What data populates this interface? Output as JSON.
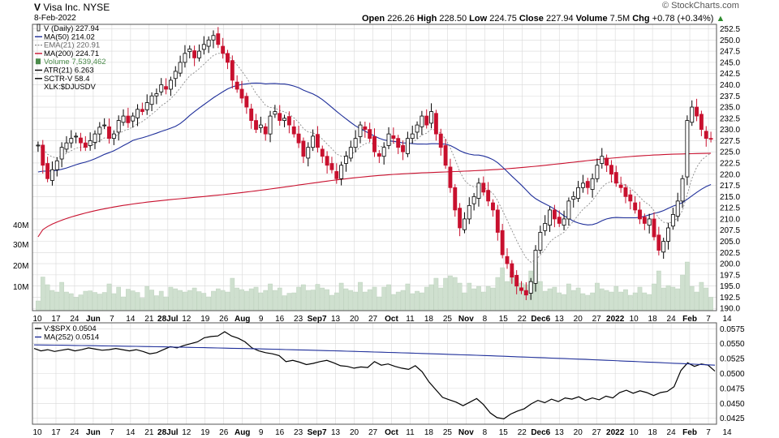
{
  "header": {
    "symbol": "V",
    "company": "Visa Inc.",
    "exchange": "NYSE",
    "date": "8-Feb-2022",
    "open_label": "Open",
    "open": "226.26",
    "high_label": "High",
    "high": "228.50",
    "low_label": "Low",
    "low": "224.75",
    "close_label": "Close",
    "close": "227.94",
    "volume_label": "Volume",
    "volume": "7.5M",
    "chg_label": "Chg",
    "chg": "+0.78 (+0.34%)",
    "brand": "© StockCharts.com"
  },
  "legend": [
    {
      "text": "V (Daily) 227.94",
      "color": "#000000",
      "style": "candle"
    },
    {
      "text": "MA(50) 214.02",
      "color": "#1f2f9a",
      "style": "line"
    },
    {
      "text": "EMA(21) 220.91",
      "color": "#8a8a8a",
      "style": "dash"
    },
    {
      "text": "MA(200) 224.71",
      "color": "#c8102e",
      "style": "line"
    },
    {
      "text": "Volume 7,539,462",
      "color": "#4c8c4c",
      "style": "bar"
    },
    {
      "text": "ATR(21) 6.263",
      "color": "#000000",
      "style": "line"
    },
    {
      "text": "SCTR-V 58.4",
      "color": "#000000",
      "style": "line"
    },
    {
      "text": "XLK:$DJUSDV",
      "color": "#000000",
      "style": "none"
    }
  ],
  "legend2": [
    {
      "text": "V:$SPX 0.0504",
      "color": "#000000"
    },
    {
      "text": "MA(252) 0.0514",
      "color": "#1f2f9a"
    }
  ],
  "colors": {
    "up": "#000000",
    "down": "#c8102e",
    "volume": "#cfe0cf",
    "ma50": "#1f2f9a",
    "ma200": "#c8102e",
    "ema21": "#8a8a8a",
    "grid": "#d8d8d8"
  },
  "chart_data": [
    {
      "type": "candlestick",
      "title": "V Visa Inc. NYSE (Daily)",
      "x_ticks": [
        "10",
        "17",
        "24",
        "Jun",
        "7",
        "14",
        "21",
        "28Jul",
        "12",
        "19",
        "26",
        "Aug",
        "9",
        "16",
        "23",
        "Sep7",
        "13",
        "20",
        "27",
        "Oct",
        "11",
        "18",
        "25",
        "Nov",
        "8",
        "15",
        "22",
        "Dec6",
        "13",
        "20",
        "27",
        "2022",
        "10",
        "18",
        "24",
        "Feb",
        "7",
        "14"
      ],
      "y_ticks": [
        "190.0",
        "192.5",
        "195.0",
        "197.5",
        "200.0",
        "202.5",
        "205.0",
        "207.5",
        "210.0",
        "212.5",
        "215.0",
        "217.5",
        "220.0",
        "222.5",
        "225.0",
        "227.5",
        "230.0",
        "232.5",
        "235.0",
        "237.5",
        "240.0",
        "242.5",
        "245.0",
        "247.5",
        "250.0",
        "252.5"
      ],
      "ylim": [
        189.5,
        253.5
      ],
      "volume_ticks": [
        "10M",
        "20M",
        "30M",
        "40M"
      ],
      "close_series": [
        226.5,
        222,
        219,
        221,
        223,
        226,
        227,
        228,
        228.5,
        227,
        226,
        227.5,
        229,
        230.5,
        231,
        228,
        229,
        232,
        233,
        231.5,
        233,
        234.5,
        234,
        236,
        237.5,
        238,
        240,
        239,
        241,
        243,
        245,
        247,
        248,
        246,
        247.5,
        249,
        250,
        251,
        249,
        247,
        245,
        241,
        239,
        237,
        235,
        232,
        230,
        231,
        229,
        233,
        234,
        232,
        232.5,
        231,
        229,
        227,
        224,
        226,
        228.5,
        226,
        224,
        222,
        221,
        219,
        222,
        224,
        226,
        228,
        231,
        230,
        228,
        225,
        224,
        226,
        229,
        228,
        226,
        225,
        228,
        229,
        231,
        233,
        231,
        234,
        229,
        226,
        222,
        217,
        212,
        208,
        210,
        213,
        215,
        218,
        216,
        214,
        212,
        207,
        202,
        200,
        197,
        195,
        194,
        193,
        196,
        203,
        207,
        209,
        212,
        210,
        209,
        210,
        214,
        215,
        217,
        218,
        217,
        219,
        222,
        224,
        222,
        220,
        218,
        217,
        215,
        214,
        212,
        210,
        209,
        210,
        206,
        203,
        205,
        208,
        211,
        214,
        219,
        232,
        235,
        233,
        230,
        228,
        227.9
      ],
      "ma50_start": 220.5,
      "ma50_end": 214.02,
      "ma200_start": 206,
      "ma200_end": 224.71,
      "ema21_last": 220.91
    },
    {
      "type": "line",
      "title": "V:$SPX",
      "y_ticks": [
        "0.0425",
        "0.0450",
        "0.0475",
        "0.0500",
        "0.0525",
        "0.0550",
        "0.0575"
      ],
      "ylim": [
        0.0415,
        0.0585
      ],
      "series": [
        {
          "name": "V:$SPX",
          "last": 0.0504,
          "values": [
            0.0542,
            0.0538,
            0.054,
            0.0537,
            0.0539,
            0.0541,
            0.0538,
            0.054,
            0.0543,
            0.0541,
            0.0539,
            0.054,
            0.0542,
            0.054,
            0.0538,
            0.054,
            0.0537,
            0.0533,
            0.0535,
            0.054,
            0.0545,
            0.0543,
            0.0547,
            0.055,
            0.0553,
            0.056,
            0.0562,
            0.0563,
            0.057,
            0.0563,
            0.0559,
            0.0553,
            0.0543,
            0.0538,
            0.0535,
            0.0533,
            0.053,
            0.052,
            0.0522,
            0.0519,
            0.0515,
            0.0517,
            0.052,
            0.0522,
            0.0518,
            0.0513,
            0.0512,
            0.0509,
            0.0511,
            0.051,
            0.052,
            0.0514,
            0.0516,
            0.0512,
            0.0509,
            0.0507,
            0.0513,
            0.0503,
            0.0486,
            0.0473,
            0.046,
            0.0456,
            0.0452,
            0.0446,
            0.0452,
            0.0458,
            0.0448,
            0.0434,
            0.0426,
            0.0424,
            0.0432,
            0.0437,
            0.0441,
            0.0449,
            0.0455,
            0.0451,
            0.0457,
            0.0453,
            0.0459,
            0.0457,
            0.0461,
            0.0455,
            0.0459,
            0.0456,
            0.0462,
            0.0459,
            0.0468,
            0.0472,
            0.0467,
            0.0471,
            0.0468,
            0.0463,
            0.0468,
            0.047,
            0.0478,
            0.0505,
            0.0518,
            0.0512,
            0.0516,
            0.0514,
            0.0504
          ]
        },
        {
          "name": "MA(252)",
          "last": 0.0514,
          "start": 0.0548
        }
      ]
    }
  ]
}
